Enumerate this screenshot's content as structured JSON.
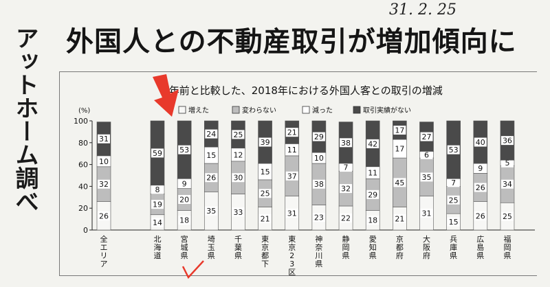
{
  "headline": "外国人との不動産取引が増加傾向に",
  "side_label": "アットホーム調べ",
  "handwritten_date": "31. 2. 25",
  "colors": {
    "increased": "#fafafa",
    "unchanged": "#bdbdbd",
    "decreased": "#ffffff",
    "no_record": "#4a4a4a",
    "annotation": "#e8392b"
  },
  "chart_data": {
    "type": "bar",
    "stacked": true,
    "title": "1年前と比較した、2018年における外国人客との取引の増減",
    "ylabel": "(%)",
    "ylim": [
      0,
      100
    ],
    "yticks": [
      "0",
      "20",
      "40",
      "60",
      "80",
      "100"
    ],
    "grid": false,
    "legend_position": "top",
    "categories": [
      "全エリア",
      "北海道",
      "宮城県",
      "埼玉県",
      "千葉県",
      "東京都下",
      "東京23区",
      "神奈川県",
      "静岡県",
      "愛知県",
      "京都府",
      "大阪府",
      "兵庫県",
      "広島県",
      "福岡県"
    ],
    "series": [
      {
        "name": "増えた",
        "values": [
          26,
          14,
          18,
          35,
          33,
          21,
          31,
          23,
          22,
          18,
          21,
          31,
          15,
          26,
          25
        ]
      },
      {
        "name": "変わらない",
        "values": [
          32,
          19,
          20,
          26,
          30,
          25,
          37,
          38,
          32,
          29,
          45,
          35,
          25,
          26,
          34
        ]
      },
      {
        "name": "減った",
        "values": [
          10,
          8,
          9,
          15,
          12,
          15,
          11,
          10,
          7,
          11,
          17,
          6,
          7,
          9,
          5
        ]
      },
      {
        "name": "取引実績がない",
        "values": [
          31,
          59,
          53,
          24,
          25,
          39,
          21,
          29,
          38,
          42,
          17,
          27,
          53,
          40,
          36
        ]
      }
    ]
  }
}
